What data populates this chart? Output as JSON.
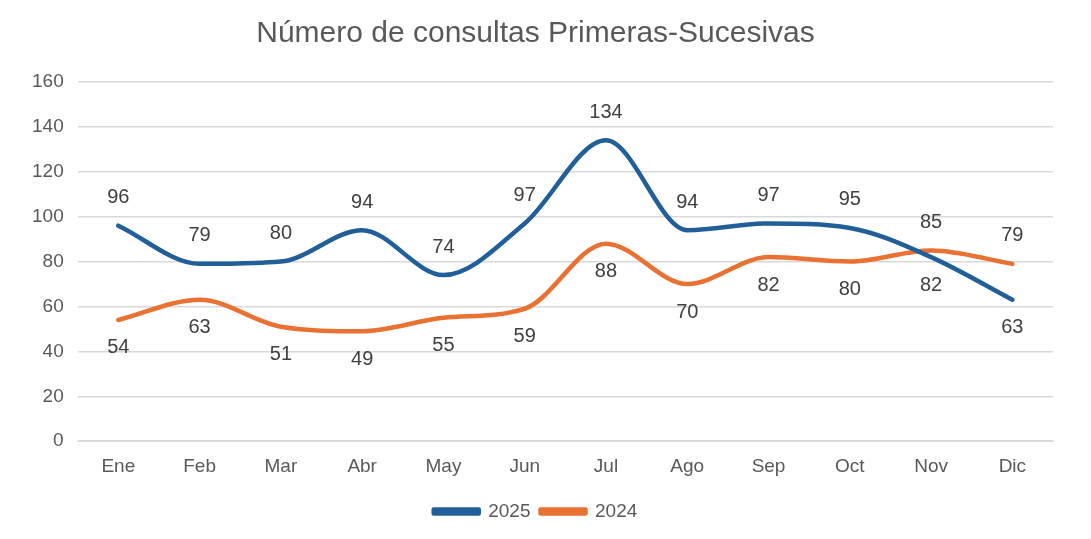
{
  "chart_data": {
    "type": "line",
    "title": "Número de consultas Primeras-Sucesivas",
    "categories": [
      "Ene",
      "Feb",
      "Mar",
      "Abr",
      "May",
      "Jun",
      "Jul",
      "Ago",
      "Sep",
      "Oct",
      "Nov",
      "Dic"
    ],
    "series": [
      {
        "name": "2025",
        "color": "#215f9a",
        "values": [
          96,
          79,
          80,
          94,
          74,
          97,
          134,
          94,
          97,
          95,
          82,
          63
        ]
      },
      {
        "name": "2024",
        "color": "#e97132",
        "values": [
          54,
          63,
          51,
          49,
          55,
          59,
          88,
          70,
          82,
          80,
          85,
          79
        ]
      }
    ],
    "ylim": [
      0,
      160
    ],
    "yticks": [
      0,
      20,
      40,
      60,
      80,
      100,
      120,
      140,
      160
    ],
    "grid": "y",
    "legend": "bottom",
    "marker": "none",
    "line_style": "solid",
    "data_labels": true
  }
}
